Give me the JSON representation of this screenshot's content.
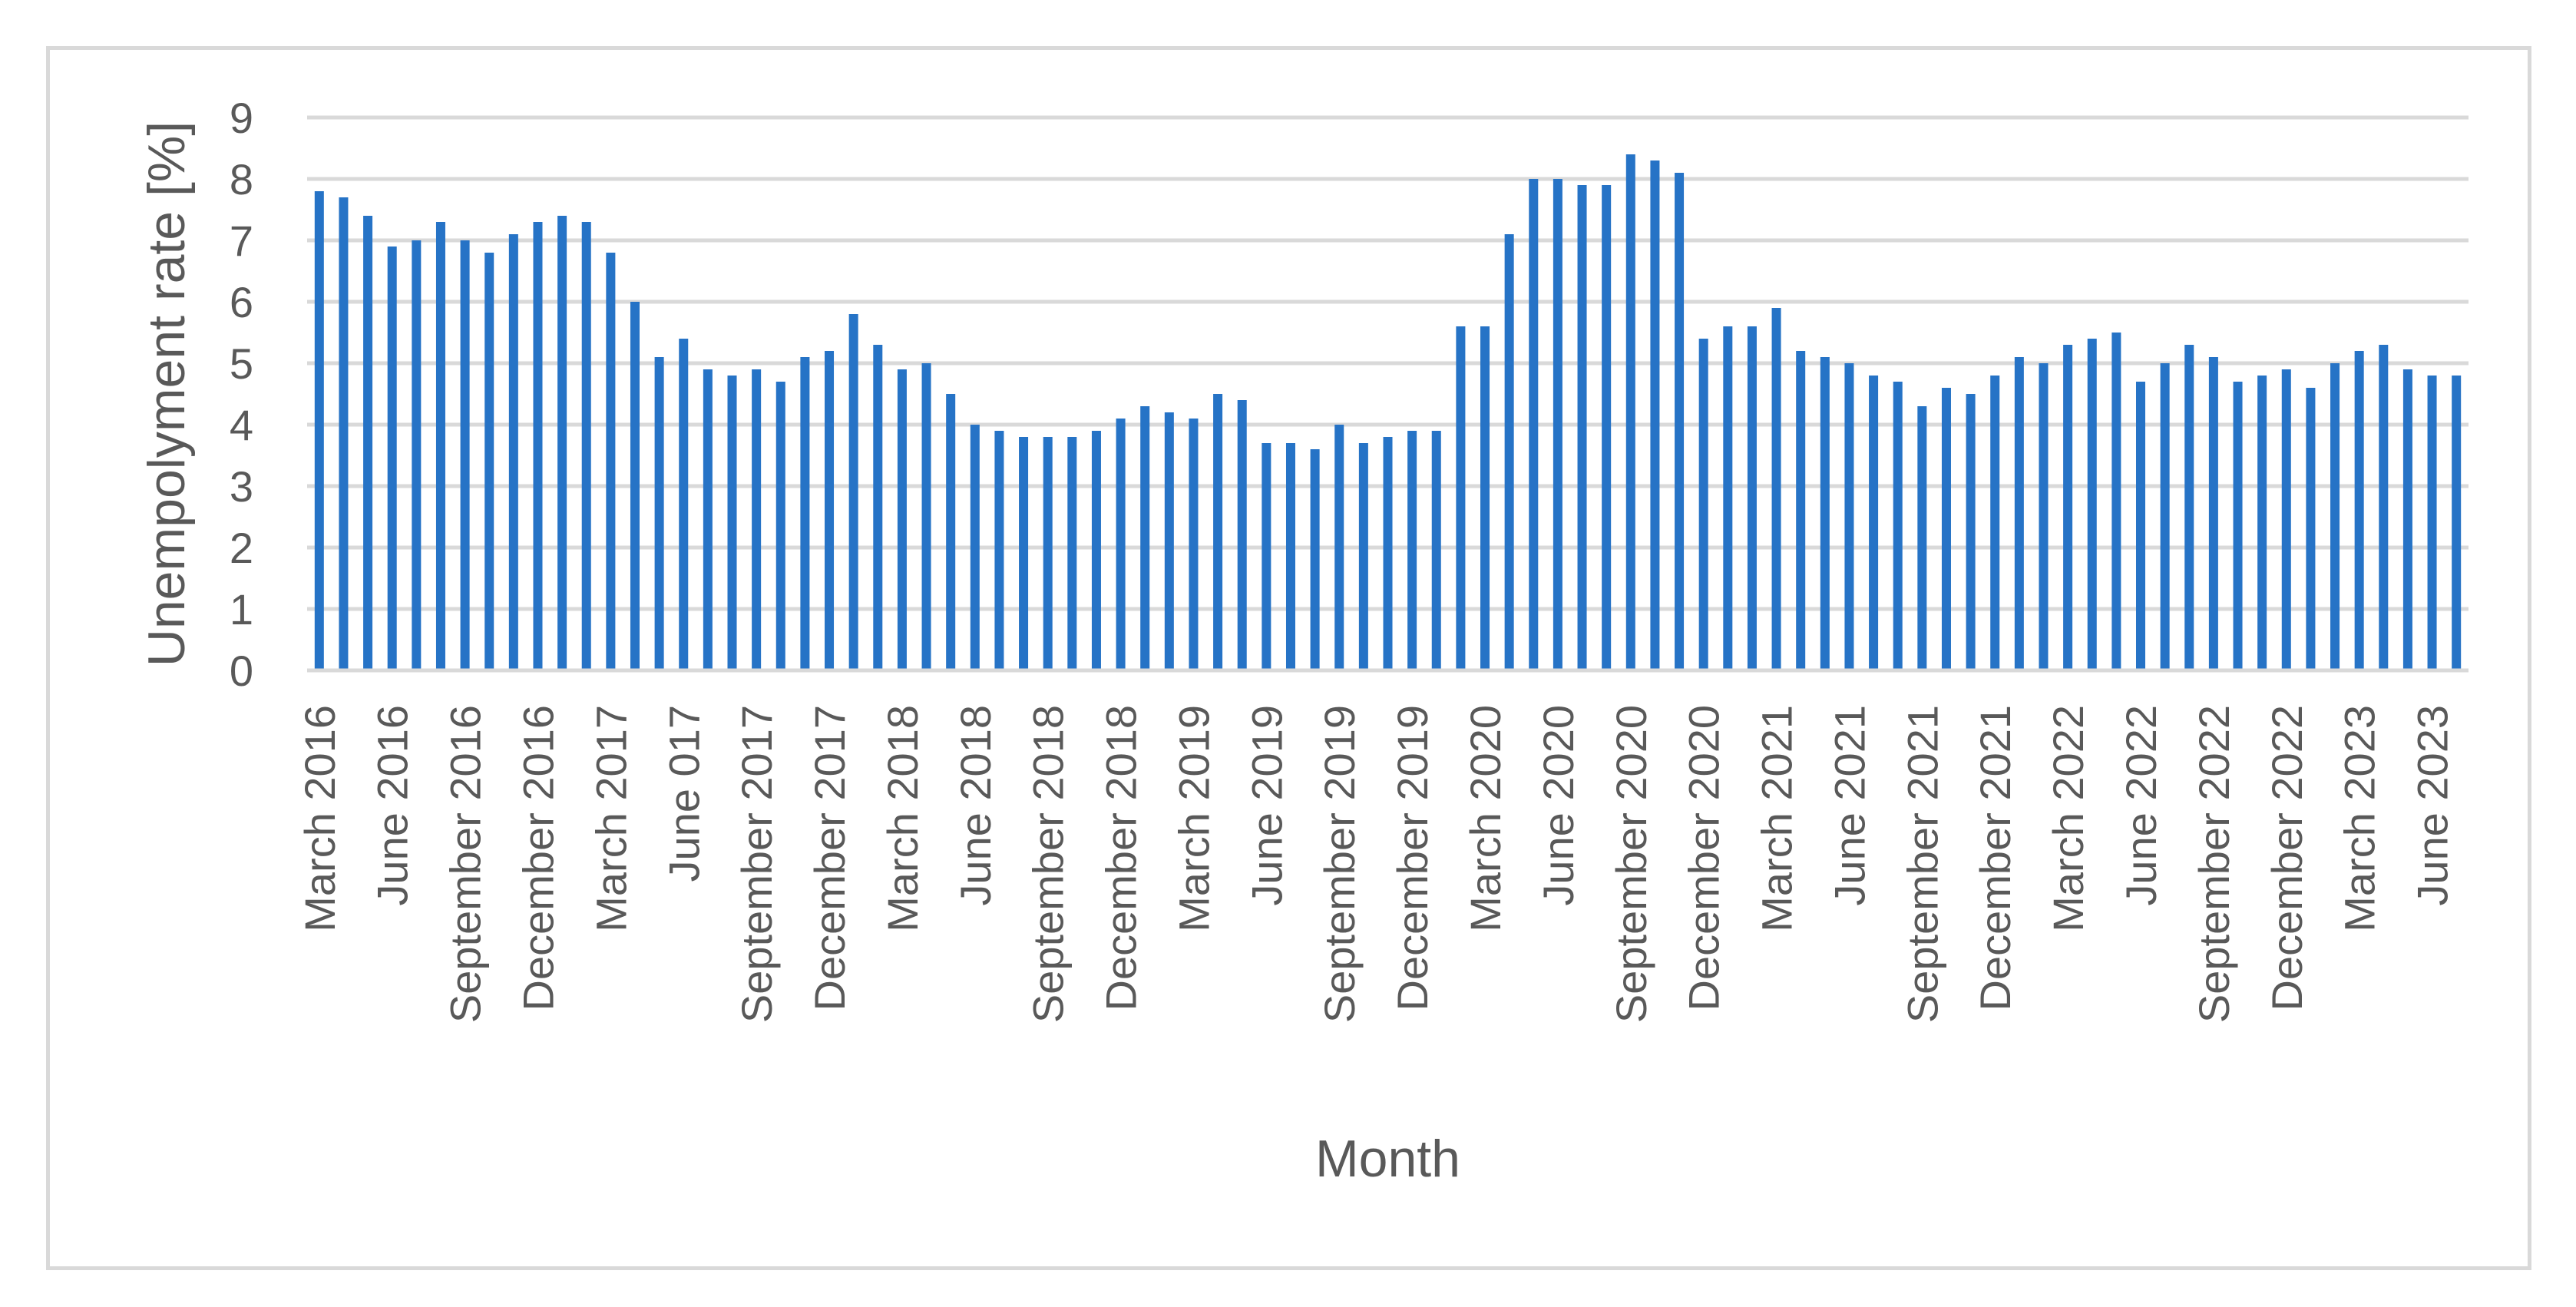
{
  "chart_data": {
    "type": "bar",
    "title": "",
    "xlabel": "Month",
    "ylabel": "Unempolyment rate [%]",
    "ylim": [
      0,
      9
    ],
    "yticks": [
      0,
      1,
      2,
      3,
      4,
      5,
      6,
      7,
      8,
      9
    ],
    "grid": true,
    "legend": "none",
    "bar_color": "#2673c6",
    "grid_color": "#d9d9d9",
    "categories": [
      "March 2016",
      "April 2016",
      "May 2016",
      "June 2016",
      "July 2016",
      "August 2016",
      "September 2016",
      "October 2016",
      "November 2016",
      "December 2016",
      "January 2017",
      "February 2017",
      "March 2017",
      "April 2017",
      "May 2017",
      "June 017",
      "July 2017",
      "August 2017",
      "September 2017",
      "October 2017",
      "November 2017",
      "December 2017",
      "January 2018",
      "February 2018",
      "March 2018",
      "April 2018",
      "May 2018",
      "June 2018",
      "July 2018",
      "August 2018",
      "September 2018",
      "October 2018",
      "November 2018",
      "December 2018",
      "January 2019",
      "February 2019",
      "March 2019",
      "April 2019",
      "May 2019",
      "June 2019",
      "July 2019",
      "August 2019",
      "September 2019",
      "October 2019",
      "November 2019",
      "December 2019",
      "January 2020",
      "February 2020",
      "March 2020",
      "April 2020",
      "May 2020",
      "June 2020",
      "July 2020",
      "August 2020",
      "September 2020",
      "October 2020",
      "November 2020",
      "December 2020",
      "January 2021",
      "February 2021",
      "March 2021",
      "April 2021",
      "May 2021",
      "June 2021",
      "July 2021",
      "August 2021",
      "September 2021",
      "October 2021",
      "November 2021",
      "December 2021",
      "January 2022",
      "February 2022",
      "March 2022",
      "April 2022",
      "May 2022",
      "June 2022",
      "July 2022",
      "August 2022",
      "September 2022",
      "October 2022",
      "November 2022",
      "December 2022",
      "January 2023",
      "February 2023",
      "March 2023",
      "April 2023",
      "May 2023",
      "June 2023",
      "July 2023"
    ],
    "tick_labels": [
      "March 2016",
      "June 2016",
      "September 2016",
      "December 2016",
      "March 2017",
      "June 017",
      "September 2017",
      "December 2017",
      "March 2018",
      "June 2018",
      "September 2018",
      "December 2018",
      "March 2019",
      "June 2019",
      "September 2019",
      "December 2019",
      "March 2020",
      "June 2020",
      "September 2020",
      "December 2020",
      "March 2021",
      "June 2021",
      "September 2021",
      "December 2021",
      "March 2022",
      "June 2022",
      "September 2022",
      "December 2022",
      "March 2023",
      "June 2023"
    ],
    "values": [
      7.8,
      7.7,
      7.4,
      6.9,
      7.0,
      7.3,
      7.0,
      6.8,
      7.1,
      7.3,
      7.4,
      7.3,
      6.8,
      6.0,
      5.1,
      5.4,
      4.9,
      4.8,
      4.9,
      4.7,
      5.1,
      5.2,
      5.8,
      5.3,
      4.9,
      5.0,
      4.5,
      4.0,
      3.9,
      3.8,
      3.8,
      3.8,
      3.9,
      4.1,
      4.3,
      4.2,
      4.1,
      4.5,
      4.4,
      3.7,
      3.7,
      3.6,
      4.0,
      3.7,
      3.8,
      3.9,
      3.9,
      5.6,
      5.6,
      7.1,
      8.0,
      8.0,
      7.9,
      7.9,
      8.4,
      8.3,
      8.1,
      5.4,
      5.6,
      5.6,
      5.9,
      5.2,
      5.1,
      5.0,
      4.8,
      4.7,
      4.3,
      4.6,
      4.5,
      4.8,
      5.1,
      5.0,
      5.3,
      5.4,
      5.5,
      4.7,
      5.0,
      5.3,
      5.1,
      4.7,
      4.8,
      4.9,
      4.6,
      5.0,
      5.2,
      5.3,
      4.9,
      4.8,
      4.8
    ]
  }
}
